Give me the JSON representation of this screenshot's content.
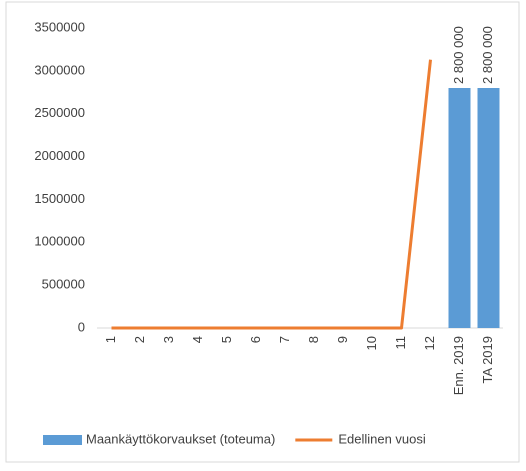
{
  "chart_data": {
    "type": "bar",
    "categories": [
      "1",
      "2",
      "3",
      "4",
      "5",
      "6",
      "7",
      "8",
      "9",
      "10",
      "11",
      "12",
      "Enn. 2019",
      "TA 2019"
    ],
    "series": [
      {
        "name": "Maankäyttökorvaukset (toteuma)",
        "color": "#5b9bd5",
        "type": "bar",
        "values": [
          null,
          null,
          null,
          null,
          null,
          null,
          null,
          null,
          null,
          null,
          null,
          null,
          2800000,
          2800000
        ],
        "value_labels": [
          null,
          null,
          null,
          null,
          null,
          null,
          null,
          null,
          null,
          null,
          null,
          null,
          "2 800 000",
          "2 800 000"
        ]
      },
      {
        "name": "Edellinen vuosi",
        "color": "#ed7d31",
        "type": "line",
        "values": [
          0,
          0,
          0,
          0,
          0,
          0,
          0,
          0,
          0,
          0,
          0,
          3130000,
          null,
          null
        ]
      }
    ],
    "ylim": [
      0,
      3500000
    ],
    "yticks": [
      0,
      500000,
      1000000,
      1500000,
      2000000,
      2500000,
      3000000,
      3500000
    ],
    "grid": false,
    "legend": "bottom"
  }
}
